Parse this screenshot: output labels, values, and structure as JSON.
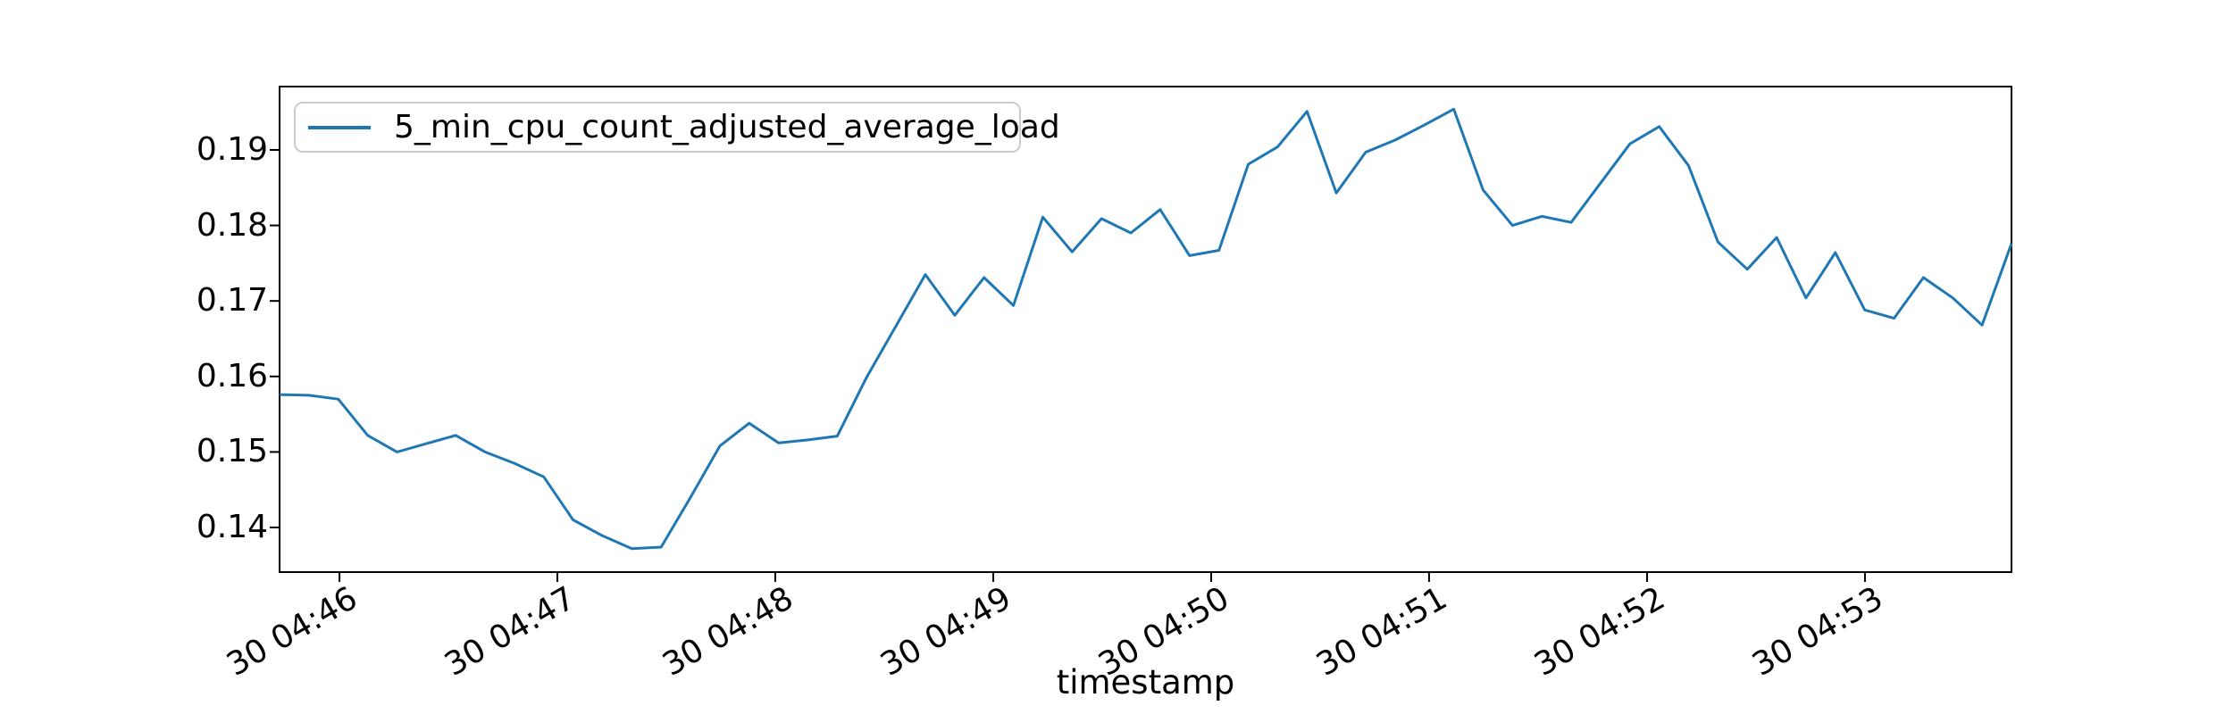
{
  "figure": {
    "background": "#ffffff",
    "axis_color": "#000000",
    "xlabel": "timestamp"
  },
  "legend": {
    "label": "5_min_cpu_count_adjusted_average_load",
    "line_color": "#1f77b4",
    "position": "upper left"
  },
  "chart_data": {
    "type": "line",
    "title": "",
    "xlabel": "timestamp",
    "ylabel": "",
    "grid": false,
    "legend_position": "upper left",
    "ylim": [
      0.13409,
      0.19839
    ],
    "y_ticks": [
      {
        "label": "0.14",
        "value": 0.14
      },
      {
        "label": "0.15",
        "value": 0.15
      },
      {
        "label": "0.16",
        "value": 0.16
      },
      {
        "label": "0.17",
        "value": 0.17
      },
      {
        "label": "0.18",
        "value": 0.18
      },
      {
        "label": "0.19",
        "value": 0.19
      }
    ],
    "x_ticks": [
      {
        "label": "30 04:46",
        "pos": 0.0346
      },
      {
        "label": "30 04:47",
        "pos": 0.1604
      },
      {
        "label": "30 04:48",
        "pos": 0.2862
      },
      {
        "label": "30 04:49",
        "pos": 0.4121
      },
      {
        "label": "30 04:50",
        "pos": 0.5379
      },
      {
        "label": "30 04:51",
        "pos": 0.6637
      },
      {
        "label": "30 04:52",
        "pos": 0.7896
      },
      {
        "label": "30 04:53",
        "pos": 0.9154
      }
    ],
    "series": [
      {
        "name": "5_min_cpu_count_adjusted_average_load",
        "color": "#1f77b4",
        "values": [
          0.1576,
          0.1575,
          0.157,
          0.1522,
          0.15,
          0.1511,
          0.1522,
          0.15,
          0.1485,
          0.1467,
          0.141,
          0.1389,
          0.1372,
          0.1374,
          0.144,
          0.1508,
          0.1538,
          0.1512,
          0.1516,
          0.1521,
          0.1599,
          0.1667,
          0.1735,
          0.1681,
          0.1731,
          0.1694,
          0.1811,
          0.1765,
          0.1809,
          0.179,
          0.1821,
          0.176,
          0.1767,
          0.1881,
          0.1904,
          0.1951,
          0.1843,
          0.1897,
          0.1913,
          0.1933,
          0.1954,
          0.1847,
          0.18,
          0.1812,
          0.1804,
          0.1856,
          0.1908,
          0.1931,
          0.1879,
          0.1778,
          0.1742,
          0.1784,
          0.1704,
          0.1764,
          0.1688,
          0.1677,
          0.1731,
          0.1704,
          0.1668,
          0.1776
        ]
      }
    ]
  }
}
